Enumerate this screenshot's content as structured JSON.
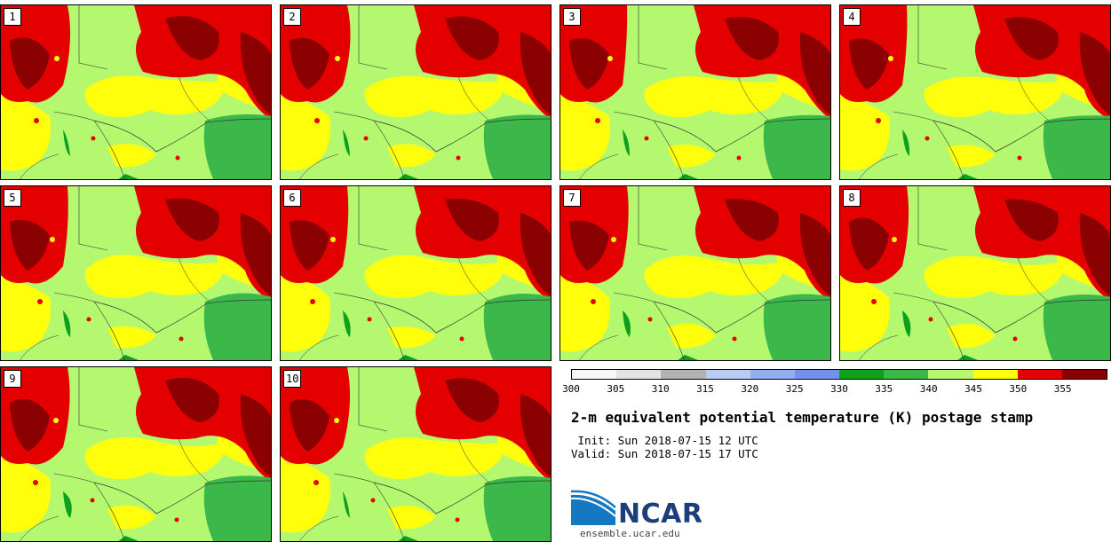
{
  "product": {
    "title": "2-m equivalent potential temperature (K) postage stamp",
    "init": " Init: Sun 2018-07-15 12 UTC",
    "valid": "Valid: Sun 2018-07-15 17 UTC"
  },
  "panels": [
    "1",
    "2",
    "3",
    "4",
    "5",
    "6",
    "7",
    "8",
    "9",
    "10"
  ],
  "colorbar": {
    "colors": [
      "#f7f7f7",
      "#e3e3e3",
      "#b3b3b3",
      "#b8cdf6",
      "#93aff0",
      "#7392ee",
      "#0ca01c",
      "#3cb84a",
      "#b4f870",
      "#ffff0b",
      "#e50000",
      "#8b0000"
    ],
    "tick_labels": [
      "300",
      "305",
      "310",
      "315",
      "320",
      "325",
      "330",
      "335",
      "340",
      "345",
      "350",
      "355"
    ]
  },
  "map_colors": {
    "lightgreen": "#b4f870",
    "yellow": "#ffff0b",
    "red": "#e50000",
    "darkred": "#8b0000",
    "green": "#3cb84a",
    "darkgreen": "#0ca01c",
    "line": "#333333"
  },
  "logo": {
    "text": "NCAR",
    "url": "ensemble.ucar.edu"
  }
}
